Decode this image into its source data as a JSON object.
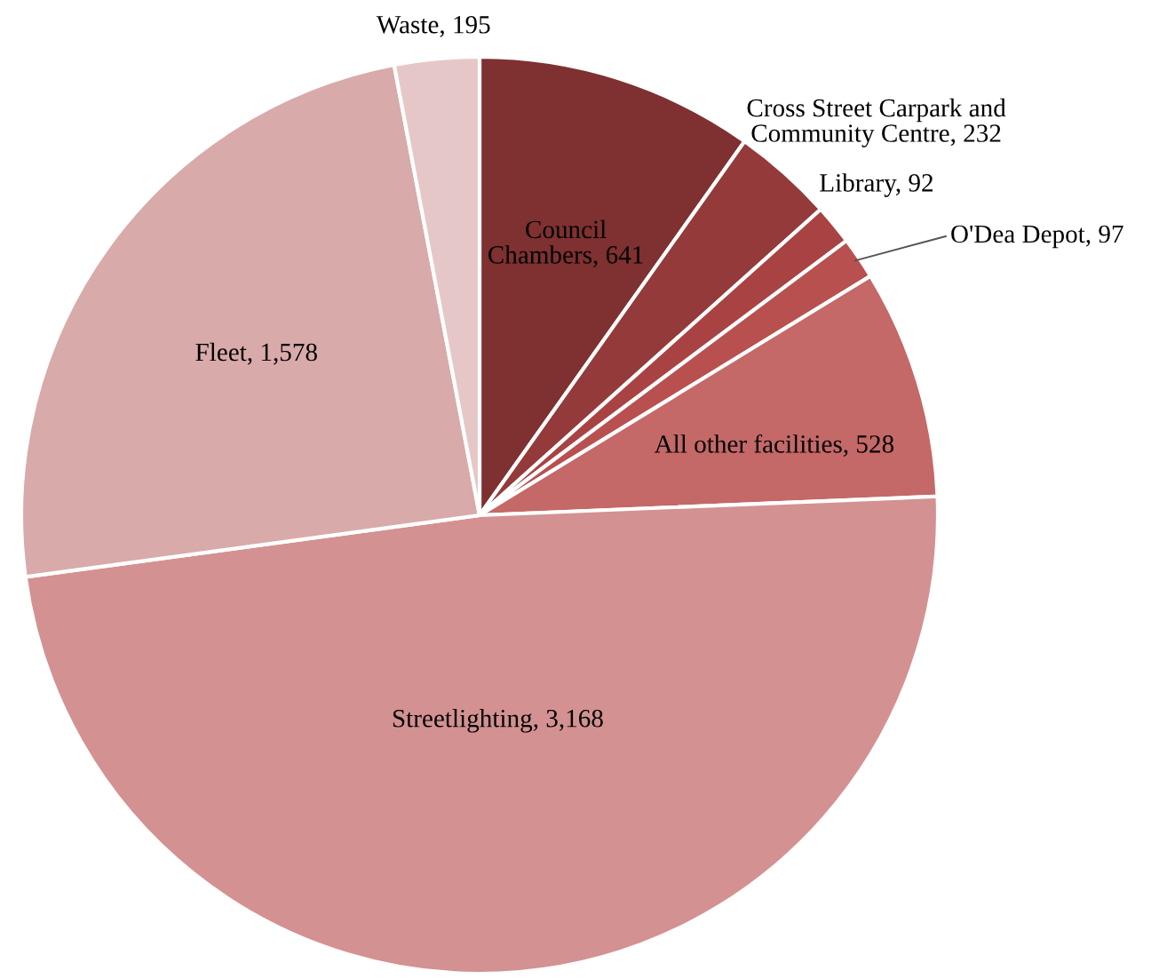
{
  "chart_data": {
    "type": "pie",
    "categories": [
      "Council\nChambers, 641",
      "Cross Street Carpark and\nCommunity Centre, 232",
      "Library, 92",
      "O'Dea Depot, 97",
      "All other facilities, 528",
      "Streetlighting, 3,168",
      "Fleet, 1,578",
      "Waste, 195"
    ],
    "values": [
      641,
      232,
      92,
      97,
      528,
      3168,
      1578,
      195
    ],
    "colors": [
      "#7f3030",
      "#943a3a",
      "#a94343",
      "#b95050",
      "#c56868",
      "#d49191",
      "#d9aaaa",
      "#e6c7c7"
    ]
  }
}
